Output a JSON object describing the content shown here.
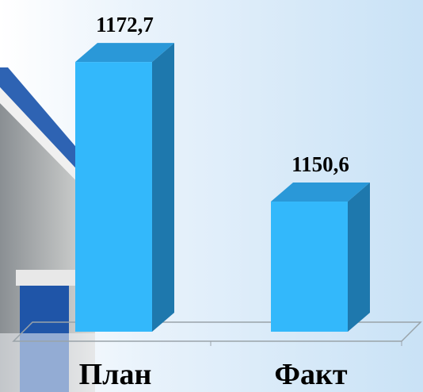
{
  "chart_data": {
    "type": "bar3d",
    "categories": [
      "План",
      "Факт"
    ],
    "values": [
      1172.7,
      1150.6
    ],
    "value_labels": [
      "1172,7",
      "1150,6"
    ],
    "color": "#33b8fb",
    "ylim": [
      1130,
      1180
    ]
  }
}
